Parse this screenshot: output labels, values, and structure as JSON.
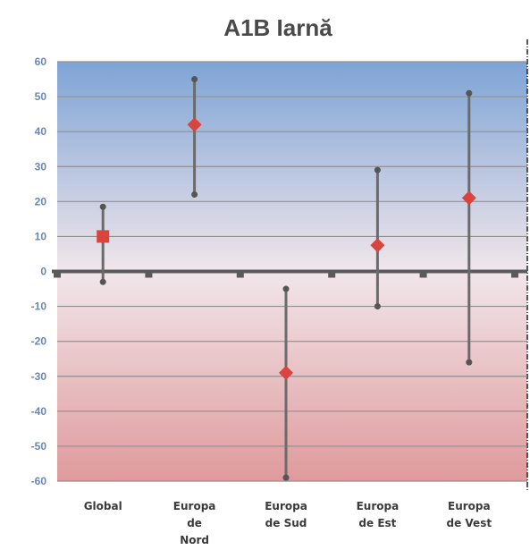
{
  "chart_data": {
    "type": "scatter",
    "title": "A1B Iarnă",
    "xlabel": "",
    "ylabel": "",
    "ylim": [
      -60,
      60
    ],
    "yticks": [
      60,
      50,
      40,
      30,
      20,
      10,
      0,
      -10,
      -20,
      -30,
      -40,
      -50,
      -60
    ],
    "grid": true,
    "legend": "none",
    "categories": [
      [
        "Global"
      ],
      [
        "Europa",
        "de",
        "Nord"
      ],
      [
        "Europa",
        "de Sud"
      ],
      [
        "Europa",
        "de Est"
      ],
      [
        "Europa",
        "de Vest"
      ]
    ],
    "points": [
      {
        "value": 10,
        "min": -3,
        "max": 18.5,
        "marker": "square"
      },
      {
        "value": 42,
        "min": 22,
        "max": 55,
        "marker": "diamond"
      },
      {
        "value": -29,
        "min": -59,
        "max": -5,
        "marker": "diamond"
      },
      {
        "value": 7.5,
        "min": -10,
        "max": 29,
        "marker": "diamond"
      },
      {
        "value": 21,
        "min": -26,
        "max": 51,
        "marker": "diamond"
      }
    ],
    "colors": {
      "marker": "#d9443c",
      "range_line": "#6b6b6b",
      "zero_line": "#5a5a5a",
      "bg_top": "#7ea4d6",
      "bg_mid": "#f1e6ea",
      "bg_bottom": "#df9a9c",
      "tick_label": "#6a86b6"
    }
  }
}
